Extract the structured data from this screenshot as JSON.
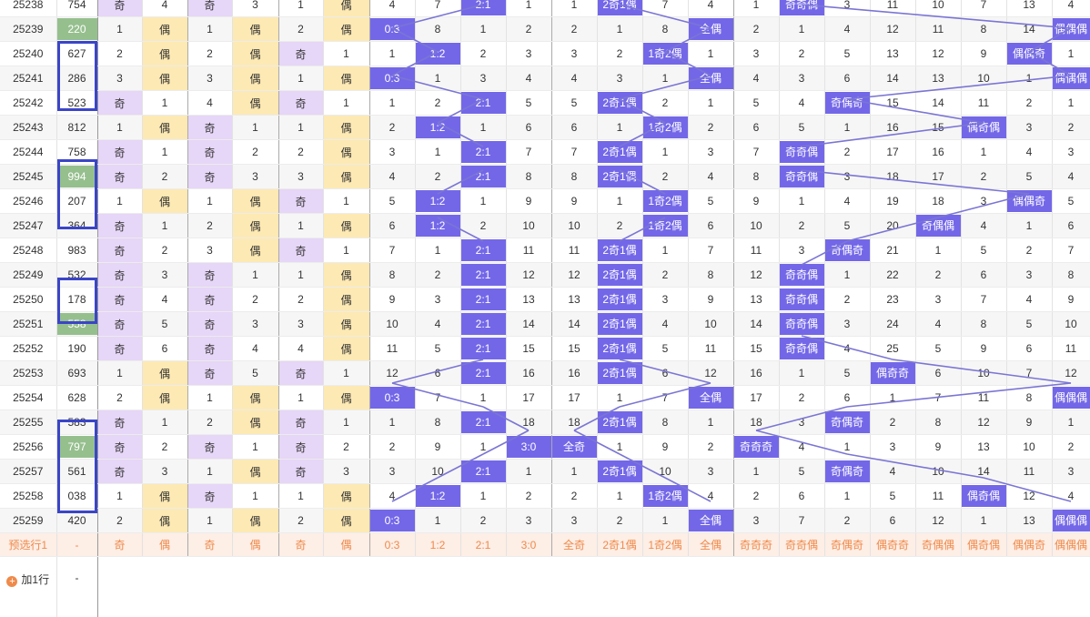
{
  "colors": {
    "hit_bg": "#7367e8",
    "purple_cell": "#e6d6f7",
    "yellow_cell": "#fde9b3",
    "highlight_number": "#96bf8e",
    "pick_row_text": "#ef8a4a",
    "connector_line": "#7b75d4",
    "box_border": "#3a45c8"
  },
  "rows": [
    {
      "issue": "25238",
      "number": "754",
      "cells": [
        "奇",
        "4",
        "奇",
        "3",
        "1",
        "偶",
        "4",
        "7",
        "2:1",
        "1",
        "1",
        "2奇1偶",
        "7",
        "4",
        "1",
        "奇奇偶",
        "3",
        "11",
        "10",
        "7",
        "13",
        "4"
      ]
    },
    {
      "issue": "25239",
      "number": "220",
      "cells": [
        "1",
        "偶",
        "1",
        "偶",
        "2",
        "偶",
        "0:3",
        "8",
        "1",
        "2",
        "2",
        "1",
        "8",
        "全偶",
        "2",
        "1",
        "4",
        "12",
        "11",
        "8",
        "14",
        "偶偶偶"
      ]
    },
    {
      "issue": "25240",
      "number": "627",
      "cells": [
        "2",
        "偶",
        "2",
        "偶",
        "奇",
        "1",
        "1",
        "1:2",
        "2",
        "3",
        "3",
        "2",
        "1奇2偶",
        "1",
        "3",
        "2",
        "5",
        "13",
        "12",
        "9",
        "偶偶奇",
        "1"
      ]
    },
    {
      "issue": "25241",
      "number": "286",
      "cells": [
        "3",
        "偶",
        "3",
        "偶",
        "1",
        "偶",
        "0:3",
        "1",
        "3",
        "4",
        "4",
        "3",
        "1",
        "全偶",
        "4",
        "3",
        "6",
        "14",
        "13",
        "10",
        "1",
        "偶偶偶"
      ]
    },
    {
      "issue": "25242",
      "number": "523",
      "cells": [
        "奇",
        "1",
        "4",
        "偶",
        "奇",
        "1",
        "1",
        "2",
        "2:1",
        "5",
        "5",
        "2奇1偶",
        "2",
        "1",
        "5",
        "4",
        "奇偶奇",
        "15",
        "14",
        "11",
        "2",
        "1"
      ]
    },
    {
      "issue": "25243",
      "number": "812",
      "cells": [
        "1",
        "偶",
        "奇",
        "1",
        "1",
        "偶",
        "2",
        "1:2",
        "1",
        "6",
        "6",
        "1",
        "1奇2偶",
        "2",
        "6",
        "5",
        "1",
        "16",
        "15",
        "偶奇偶",
        "3",
        "2"
      ]
    },
    {
      "issue": "25244",
      "number": "758",
      "cells": [
        "奇",
        "1",
        "奇",
        "2",
        "2",
        "偶",
        "3",
        "1",
        "2:1",
        "7",
        "7",
        "2奇1偶",
        "1",
        "3",
        "7",
        "奇奇偶",
        "2",
        "17",
        "16",
        "1",
        "4",
        "3"
      ]
    },
    {
      "issue": "25245",
      "number": "994",
      "cells": [
        "奇",
        "2",
        "奇",
        "3",
        "3",
        "偶",
        "4",
        "2",
        "2:1",
        "8",
        "8",
        "2奇1偶",
        "2",
        "4",
        "8",
        "奇奇偶",
        "3",
        "18",
        "17",
        "2",
        "5",
        "4"
      ]
    },
    {
      "issue": "25246",
      "number": "207",
      "cells": [
        "1",
        "偶",
        "1",
        "偶",
        "奇",
        "1",
        "5",
        "1:2",
        "1",
        "9",
        "9",
        "1",
        "1奇2偶",
        "5",
        "9",
        "1",
        "4",
        "19",
        "18",
        "3",
        "偶偶奇",
        "5"
      ]
    },
    {
      "issue": "25247",
      "number": "364",
      "cells": [
        "奇",
        "1",
        "2",
        "偶",
        "1",
        "偶",
        "6",
        "1:2",
        "2",
        "10",
        "10",
        "2",
        "1奇2偶",
        "6",
        "10",
        "2",
        "5",
        "20",
        "奇偶偶",
        "4",
        "1",
        "6"
      ]
    },
    {
      "issue": "25248",
      "number": "983",
      "cells": [
        "奇",
        "2",
        "3",
        "偶",
        "奇",
        "1",
        "7",
        "1",
        "2:1",
        "11",
        "11",
        "2奇1偶",
        "1",
        "7",
        "11",
        "3",
        "奇偶奇",
        "21",
        "1",
        "5",
        "2",
        "7"
      ]
    },
    {
      "issue": "25249",
      "number": "532",
      "cells": [
        "奇",
        "3",
        "奇",
        "1",
        "1",
        "偶",
        "8",
        "2",
        "2:1",
        "12",
        "12",
        "2奇1偶",
        "2",
        "8",
        "12",
        "奇奇偶",
        "1",
        "22",
        "2",
        "6",
        "3",
        "8"
      ]
    },
    {
      "issue": "25250",
      "number": "178",
      "cells": [
        "奇",
        "4",
        "奇",
        "2",
        "2",
        "偶",
        "9",
        "3",
        "2:1",
        "13",
        "13",
        "2奇1偶",
        "3",
        "9",
        "13",
        "奇奇偶",
        "2",
        "23",
        "3",
        "7",
        "4",
        "9"
      ]
    },
    {
      "issue": "25251",
      "number": "558",
      "cells": [
        "奇",
        "5",
        "奇",
        "3",
        "3",
        "偶",
        "10",
        "4",
        "2:1",
        "14",
        "14",
        "2奇1偶",
        "4",
        "10",
        "14",
        "奇奇偶",
        "3",
        "24",
        "4",
        "8",
        "5",
        "10"
      ]
    },
    {
      "issue": "25252",
      "number": "190",
      "cells": [
        "奇",
        "6",
        "奇",
        "4",
        "4",
        "偶",
        "11",
        "5",
        "2:1",
        "15",
        "15",
        "2奇1偶",
        "5",
        "11",
        "15",
        "奇奇偶",
        "4",
        "25",
        "5",
        "9",
        "6",
        "11"
      ]
    },
    {
      "issue": "25253",
      "number": "693",
      "cells": [
        "1",
        "偶",
        "奇",
        "5",
        "奇",
        "1",
        "12",
        "6",
        "2:1",
        "16",
        "16",
        "2奇1偶",
        "6",
        "12",
        "16",
        "1",
        "5",
        "偶奇奇",
        "6",
        "10",
        "7",
        "12"
      ]
    },
    {
      "issue": "25254",
      "number": "628",
      "cells": [
        "2",
        "偶",
        "1",
        "偶",
        "1",
        "偶",
        "0:3",
        "7",
        "1",
        "17",
        "17",
        "1",
        "7",
        "全偶",
        "17",
        "2",
        "6",
        "1",
        "7",
        "11",
        "8",
        "偶偶偶"
      ]
    },
    {
      "issue": "25255",
      "number": "583",
      "cells": [
        "奇",
        "1",
        "2",
        "偶",
        "奇",
        "1",
        "1",
        "8",
        "2:1",
        "18",
        "18",
        "2奇1偶",
        "8",
        "1",
        "18",
        "3",
        "奇偶奇",
        "2",
        "8",
        "12",
        "9",
        "1"
      ]
    },
    {
      "issue": "25256",
      "number": "797",
      "cells": [
        "奇",
        "2",
        "奇",
        "1",
        "奇",
        "2",
        "2",
        "9",
        "1",
        "3:0",
        "全奇",
        "1",
        "9",
        "2",
        "奇奇奇",
        "4",
        "1",
        "3",
        "9",
        "13",
        "10",
        "2"
      ]
    },
    {
      "issue": "25257",
      "number": "561",
      "cells": [
        "奇",
        "3",
        "1",
        "偶",
        "奇",
        "3",
        "3",
        "10",
        "2:1",
        "1",
        "1",
        "2奇1偶",
        "10",
        "3",
        "1",
        "5",
        "奇偶奇",
        "4",
        "10",
        "14",
        "11",
        "3"
      ]
    },
    {
      "issue": "25258",
      "number": "038",
      "cells": [
        "1",
        "偶",
        "奇",
        "1",
        "1",
        "偶",
        "4",
        "1:2",
        "1",
        "2",
        "2",
        "1",
        "1奇2偶",
        "4",
        "2",
        "6",
        "1",
        "5",
        "11",
        "偶奇偶",
        "12",
        "4"
      ]
    },
    {
      "issue": "25259",
      "number": "420",
      "cells": [
        "2",
        "偶",
        "1",
        "偶",
        "2",
        "偶",
        "0:3",
        "1",
        "2",
        "3",
        "3",
        "2",
        "1",
        "全偶",
        "3",
        "7",
        "2",
        "6",
        "12",
        "1",
        "13",
        "偶偶偶"
      ]
    }
  ],
  "pick_row": {
    "issue": "预选行1",
    "number": "-",
    "cells": [
      "奇",
      "偶",
      "奇",
      "偶",
      "奇",
      "偶",
      "0:3",
      "1:2",
      "2:1",
      "3:0",
      "全奇",
      "2奇1偶",
      "1奇2偶",
      "全偶",
      "奇奇奇",
      "奇奇偶",
      "奇偶奇",
      "偶奇奇",
      "奇偶偶",
      "偶奇偶",
      "偶偶奇",
      "偶偶偶"
    ]
  },
  "add_row": {
    "label": "加1行",
    "plus_icon": "+",
    "number": "-"
  }
}
